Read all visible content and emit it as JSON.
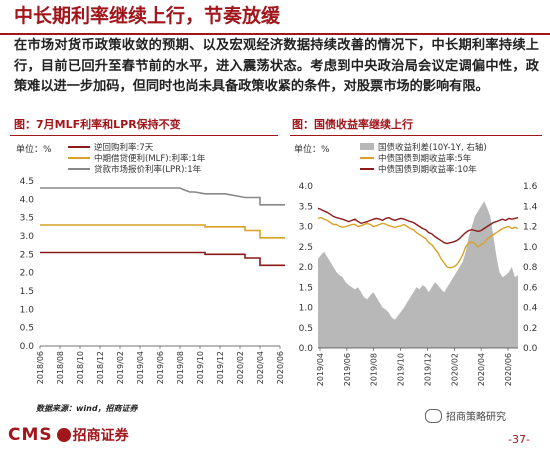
{
  "header": {
    "title": "中长期利率继续上行，节奏放缓",
    "paragraph": "在市场对货币政策收敛的预期、以及宏观经济数据持续改善的情况下，中长期利率持续上行，目前已回升至春节前的水平，进入震荡状态。考虑到中央政治局会议定调偏中性，政策难以进一步加码，但同时也尚未具备政策收紧的条件，对股票市场的影响有限。"
  },
  "colors": {
    "brand": "#a0161b",
    "darkred": "#8b1a1a",
    "gold": "#d8a128",
    "gray": "#888888",
    "area": "#b8b8b8"
  },
  "left_panel": {
    "title": "图：7月MLF利率和LPR保持不变"
  },
  "right_panel": {
    "title": "图：国债收益率继续上行"
  },
  "chart_data": [
    {
      "type": "line",
      "title": "图：7月MLF利率和LPR保持不变",
      "ylabel": "单位：%",
      "ylim": [
        0,
        4.5
      ],
      "yticks": [
        "0.0",
        "0.5",
        "1.0",
        "1.5",
        "2.0",
        "2.5",
        "3.0",
        "3.5",
        "4.0",
        "4.5"
      ],
      "xticks": [
        "2018/06",
        "2018/08",
        "2018/10",
        "2018/12",
        "2019/02",
        "2019/04",
        "2019/06",
        "2019/08",
        "2019/10",
        "2019/12",
        "2020/02",
        "2020/04",
        "2020/06"
      ],
      "legend_position": "top-left",
      "series": [
        {
          "name": "逆回购利率:7天",
          "color": "#8b1a1a",
          "points": [
            [
              0,
              2.55
            ],
            [
              16.5,
              2.55
            ],
            [
              16.5,
              2.5
            ],
            [
              20.5,
              2.5
            ],
            [
              20.5,
              2.4
            ],
            [
              22,
              2.4
            ],
            [
              22,
              2.2
            ],
            [
              24.5,
              2.2
            ]
          ]
        },
        {
          "name": "中期借贷便利(MLF):利率:1年",
          "color": "#d8a128",
          "points": [
            [
              0,
              3.3
            ],
            [
              16.5,
              3.3
            ],
            [
              16.5,
              3.25
            ],
            [
              20.5,
              3.25
            ],
            [
              20.5,
              3.15
            ],
            [
              22,
              3.15
            ],
            [
              22,
              2.95
            ],
            [
              24.5,
              2.95
            ]
          ]
        },
        {
          "name": "贷款市场报价利率(LPR):1年",
          "color": "#888888",
          "points": [
            [
              0,
              4.31
            ],
            [
              14,
              4.31
            ],
            [
              14.5,
              4.25
            ],
            [
              15,
              4.2
            ],
            [
              15.5,
              4.2
            ],
            [
              16.5,
              4.15
            ],
            [
              18.5,
              4.15
            ],
            [
              20.5,
              4.05
            ],
            [
              22,
              4.05
            ],
            [
              22,
              3.85
            ],
            [
              24.5,
              3.85
            ]
          ]
        }
      ]
    },
    {
      "type": "line",
      "title": "图：国债收益率继续上行",
      "ylabel": "单位：%",
      "ylim": [
        0,
        4.0
      ],
      "y2lim": [
        0,
        1.6
      ],
      "yticks": [
        "0.0",
        "0.5",
        "1.0",
        "1.5",
        "2.0",
        "2.5",
        "3.0",
        "3.5",
        "4.0"
      ],
      "y2ticks": [
        "0.0",
        "0.2",
        "0.4",
        "0.6",
        "0.8",
        "1.0",
        "1.2",
        "1.4",
        "1.6"
      ],
      "xticks": [
        "2019/04",
        "2019/06",
        "2019/08",
        "2019/10",
        "2019/12",
        "2020/02",
        "2020/04",
        "2020/06"
      ],
      "legend_position": "top",
      "area_series": {
        "name": "国债收益利差(10Y-1Y, 右轴)",
        "color": "#b8b8b8",
        "values": [
          0.88,
          0.92,
          0.95,
          0.9,
          0.85,
          0.8,
          0.75,
          0.72,
          0.7,
          0.65,
          0.62,
          0.6,
          0.58,
          0.6,
          0.55,
          0.5,
          0.48,
          0.52,
          0.55,
          0.5,
          0.45,
          0.4,
          0.38,
          0.35,
          0.3,
          0.28,
          0.32,
          0.36,
          0.4,
          0.45,
          0.5,
          0.55,
          0.6,
          0.58,
          0.62,
          0.6,
          0.55,
          0.6,
          0.65,
          0.62,
          0.58,
          0.55,
          0.6,
          0.65,
          0.7,
          0.75,
          0.8,
          0.85,
          0.95,
          1.1,
          1.2,
          1.3,
          1.35,
          1.4,
          1.45,
          1.38,
          1.3,
          1.1,
          0.9,
          0.75,
          0.7,
          0.72,
          0.75,
          0.8,
          0.7,
          0.72
        ]
      },
      "series": [
        {
          "name": "中债国债到期收益率:5年",
          "color": "#d8a128",
          "values": [
            3.2,
            3.22,
            3.18,
            3.15,
            3.1,
            3.05,
            3.05,
            3.0,
            2.98,
            3.0,
            3.02,
            3.05,
            3.05,
            3.0,
            3.02,
            3.05,
            3.08,
            3.05,
            3.0,
            3.02,
            3.05,
            3.08,
            3.06,
            3.02,
            3.0,
            2.98,
            3.0,
            3.02,
            3.05,
            3.0,
            2.95,
            2.92,
            2.85,
            2.8,
            2.75,
            2.7,
            2.6,
            2.55,
            2.45,
            2.35,
            2.2,
            2.1,
            2.0,
            1.98,
            2.0,
            2.05,
            2.15,
            2.3,
            2.5,
            2.6,
            2.62,
            2.58,
            2.5,
            2.55,
            2.6,
            2.7,
            2.75,
            2.8,
            2.85,
            2.9,
            2.95,
            2.98,
            3.0,
            2.95,
            2.98,
            2.95
          ]
        },
        {
          "name": "中债国债到期收益率:10年",
          "color": "#8b1a1a",
          "values": [
            3.45,
            3.42,
            3.38,
            3.35,
            3.3,
            3.25,
            3.22,
            3.2,
            3.18,
            3.15,
            3.12,
            3.15,
            3.18,
            3.12,
            3.08,
            3.1,
            3.12,
            3.15,
            3.18,
            3.2,
            3.18,
            3.15,
            3.2,
            3.22,
            3.18,
            3.15,
            3.18,
            3.2,
            3.18,
            3.15,
            3.12,
            3.1,
            3.05,
            3.0,
            2.95,
            2.92,
            2.85,
            2.82,
            2.75,
            2.7,
            2.65,
            2.6,
            2.58,
            2.6,
            2.62,
            2.65,
            2.7,
            2.78,
            2.85,
            2.9,
            2.92,
            2.9,
            2.88,
            2.9,
            2.95,
            3.0,
            3.05,
            3.1,
            3.12,
            3.15,
            3.18,
            3.15,
            3.2,
            3.18,
            3.2,
            3.22
          ]
        }
      ]
    }
  ],
  "footer": {
    "source": "数据来源：wind，招商证券",
    "brand_en": "CMS",
    "brand_circle": "",
    "brand_cn": "招商证券",
    "wechat": "招商策略研究",
    "page": "-37-"
  }
}
